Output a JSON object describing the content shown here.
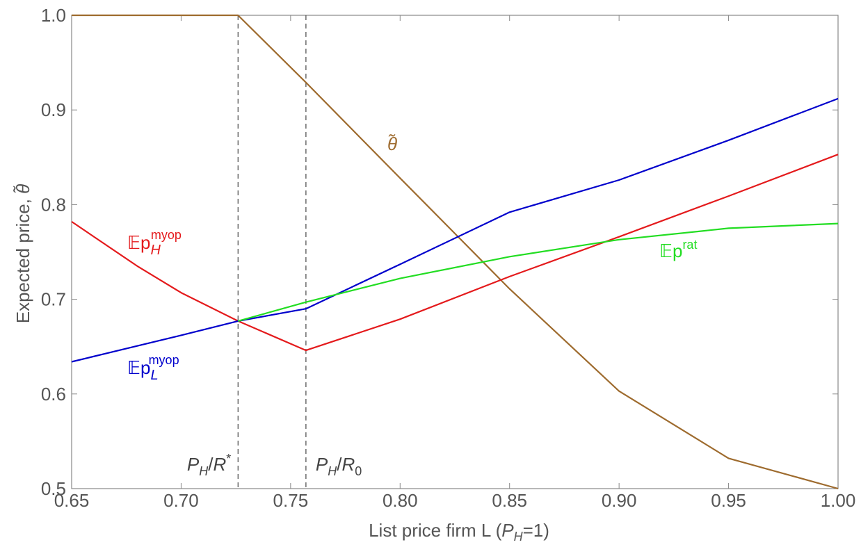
{
  "chart_data": {
    "type": "line",
    "xlabel": "List price firm L  (P_H=1)",
    "ylabel": "Expected price, θ̃",
    "xlim": [
      0.65,
      1.0
    ],
    "ylim": [
      0.5,
      1.0
    ],
    "x_ticks": [
      "0.65",
      "0.70",
      "0.75",
      "0.80",
      "0.85",
      "0.90",
      "0.95",
      "1.00"
    ],
    "y_ticks": [
      "0.5",
      "0.6",
      "0.7",
      "0.8",
      "0.9",
      "1.0"
    ],
    "grid": false,
    "vertical_lines": [
      {
        "x": 0.726,
        "label_main": "P",
        "label_sub": "H",
        "label_rest": "/R",
        "label_sup": "*",
        "label_sub2": ""
      },
      {
        "x": 0.757,
        "label_main": "P",
        "label_sub": "H",
        "label_rest": "/R",
        "label_sup": "",
        "label_sub2": "0"
      }
    ],
    "series": [
      {
        "name": "θ̃",
        "color": "#9e6b2e",
        "label": {
          "base": "θ̃",
          "sup": "",
          "sub": ""
        },
        "points": [
          [
            0.65,
            1.0
          ],
          [
            0.726,
            1.0
          ],
          [
            0.757,
            0.929
          ],
          [
            0.8,
            0.828
          ],
          [
            0.85,
            0.711
          ],
          [
            0.9,
            0.603
          ],
          [
            0.95,
            0.532
          ],
          [
            1.0,
            0.5
          ]
        ]
      },
      {
        "name": "Ep_H^myop",
        "color": "#e41a1c",
        "label": {
          "base": "𝔼p",
          "sup": "myop",
          "sub": "H"
        },
        "points": [
          [
            0.65,
            0.782
          ],
          [
            0.68,
            0.735
          ],
          [
            0.7,
            0.707
          ],
          [
            0.726,
            0.677
          ],
          [
            0.757,
            0.646
          ],
          [
            0.8,
            0.679
          ],
          [
            0.85,
            0.724
          ],
          [
            0.9,
            0.766
          ],
          [
            0.95,
            0.809
          ],
          [
            1.0,
            0.853
          ]
        ]
      },
      {
        "name": "Ep_L^myop",
        "color": "#0000cc",
        "label": {
          "base": "𝔼p",
          "sup": "myop",
          "sub": "L"
        },
        "points": [
          [
            0.65,
            0.634
          ],
          [
            0.7,
            0.662
          ],
          [
            0.726,
            0.677
          ],
          [
            0.757,
            0.69
          ],
          [
            0.8,
            0.737
          ],
          [
            0.85,
            0.792
          ],
          [
            0.9,
            0.826
          ],
          [
            0.95,
            0.868
          ],
          [
            1.0,
            0.912
          ]
        ]
      },
      {
        "name": "Ep^rat",
        "color": "#22dd22",
        "label": {
          "base": "𝔼p",
          "sup": "rat",
          "sub": ""
        },
        "points": [
          [
            0.726,
            0.677
          ],
          [
            0.757,
            0.697
          ],
          [
            0.8,
            0.722
          ],
          [
            0.85,
            0.745
          ],
          [
            0.9,
            0.763
          ],
          [
            0.95,
            0.775
          ],
          [
            1.0,
            0.78
          ]
        ]
      }
    ]
  }
}
